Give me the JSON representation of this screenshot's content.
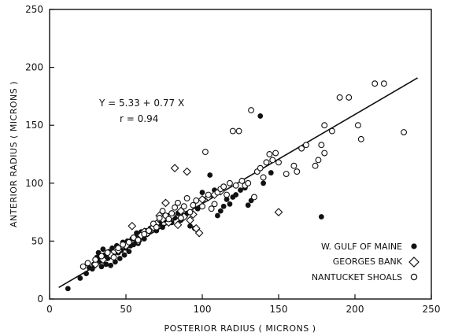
{
  "chart_data": {
    "type": "scatter",
    "title": "",
    "xlabel": "POSTERIOR RADIUS ( MICRONS )",
    "ylabel": "ANTERIOR RADIUS ( MICRONS )",
    "xlim": [
      0,
      250
    ],
    "ylim": [
      0,
      250
    ],
    "xticks": [
      0,
      50,
      100,
      150,
      200,
      250
    ],
    "yticks": [
      0,
      50,
      100,
      150,
      200,
      250
    ],
    "grid": false,
    "legend_position": "bottom-right",
    "annotation": {
      "equation": "Y = 5.33 + 0.77 X",
      "r": "r = 0.94"
    },
    "regression": {
      "intercept": 5.33,
      "slope": 0.77,
      "x_range": [
        6,
        241
      ]
    },
    "series": [
      {
        "name": "W. GULF OF MAINE",
        "marker": "filled-circle",
        "points": [
          [
            12,
            9
          ],
          [
            20,
            18
          ],
          [
            24,
            22
          ],
          [
            26,
            27
          ],
          [
            28,
            26
          ],
          [
            29,
            30
          ],
          [
            31,
            36
          ],
          [
            32,
            40
          ],
          [
            33,
            33
          ],
          [
            34,
            28
          ],
          [
            35,
            43
          ],
          [
            36,
            38
          ],
          [
            37,
            30
          ],
          [
            38,
            35
          ],
          [
            39,
            41
          ],
          [
            40,
            29
          ],
          [
            41,
            44
          ],
          [
            42,
            37
          ],
          [
            43,
            32
          ],
          [
            44,
            46
          ],
          [
            45,
            40
          ],
          [
            46,
            35
          ],
          [
            47,
            42
          ],
          [
            48,
            49
          ],
          [
            49,
            38
          ],
          [
            50,
            44
          ],
          [
            51,
            50
          ],
          [
            52,
            41
          ],
          [
            53,
            46
          ],
          [
            54,
            52
          ],
          [
            55,
            47
          ],
          [
            56,
            53
          ],
          [
            57,
            57
          ],
          [
            58,
            48
          ],
          [
            59,
            55
          ],
          [
            60,
            58
          ],
          [
            62,
            52
          ],
          [
            63,
            59
          ],
          [
            64,
            56
          ],
          [
            66,
            61
          ],
          [
            68,
            63
          ],
          [
            70,
            59
          ],
          [
            72,
            65
          ],
          [
            74,
            62
          ],
          [
            76,
            68
          ],
          [
            78,
            72
          ],
          [
            80,
            66
          ],
          [
            82,
            70
          ],
          [
            84,
            74
          ],
          [
            86,
            68
          ],
          [
            88,
            72
          ],
          [
            90,
            74
          ],
          [
            92,
            63
          ],
          [
            95,
            61
          ],
          [
            97,
            78
          ],
          [
            100,
            92
          ],
          [
            105,
            107
          ],
          [
            108,
            94
          ],
          [
            110,
            72
          ],
          [
            112,
            76
          ],
          [
            114,
            80
          ],
          [
            116,
            86
          ],
          [
            118,
            82
          ],
          [
            120,
            88
          ],
          [
            122,
            90
          ],
          [
            125,
            94
          ],
          [
            128,
            96
          ],
          [
            130,
            81
          ],
          [
            132,
            85
          ],
          [
            138,
            158
          ],
          [
            140,
            100
          ],
          [
            145,
            109
          ],
          [
            178,
            71
          ]
        ]
      },
      {
        "name": "GEORGES BANK",
        "marker": "open-diamond",
        "points": [
          [
            30,
            30
          ],
          [
            35,
            34
          ],
          [
            40,
            38
          ],
          [
            45,
            42
          ],
          [
            50,
            46
          ],
          [
            54,
            63
          ],
          [
            56,
            52
          ],
          [
            58,
            50
          ],
          [
            60,
            55
          ],
          [
            62,
            58
          ],
          [
            64,
            57
          ],
          [
            66,
            60
          ],
          [
            68,
            62
          ],
          [
            70,
            65
          ],
          [
            72,
            72
          ],
          [
            74,
            69
          ],
          [
            76,
            83
          ],
          [
            78,
            66
          ],
          [
            80,
            72
          ],
          [
            82,
            113
          ],
          [
            84,
            64
          ],
          [
            86,
            76
          ],
          [
            88,
            71
          ],
          [
            90,
            110
          ],
          [
            92,
            68
          ],
          [
            94,
            73
          ],
          [
            96,
            61
          ],
          [
            98,
            57
          ],
          [
            100,
            86
          ],
          [
            104,
            88
          ],
          [
            108,
            90
          ],
          [
            112,
            93
          ],
          [
            150,
            75
          ]
        ]
      },
      {
        "name": "NANTUCKET SHOALS",
        "marker": "open-circle",
        "points": [
          [
            22,
            28
          ],
          [
            25,
            31
          ],
          [
            30,
            34
          ],
          [
            34,
            37
          ],
          [
            38,
            40
          ],
          [
            42,
            36
          ],
          [
            45,
            44
          ],
          [
            48,
            47
          ],
          [
            52,
            49
          ],
          [
            55,
            53
          ],
          [
            58,
            51
          ],
          [
            62,
            56
          ],
          [
            65,
            59
          ],
          [
            68,
            65
          ],
          [
            70,
            62
          ],
          [
            72,
            70
          ],
          [
            74,
            76
          ],
          [
            76,
            72
          ],
          [
            78,
            69
          ],
          [
            80,
            74
          ],
          [
            82,
            79
          ],
          [
            84,
            83
          ],
          [
            86,
            70
          ],
          [
            88,
            80
          ],
          [
            90,
            87
          ],
          [
            92,
            75
          ],
          [
            94,
            81
          ],
          [
            96,
            85
          ],
          [
            100,
            80
          ],
          [
            102,
            127
          ],
          [
            104,
            90
          ],
          [
            106,
            78
          ],
          [
            108,
            82
          ],
          [
            110,
            92
          ],
          [
            112,
            95
          ],
          [
            114,
            97
          ],
          [
            116,
            90
          ],
          [
            118,
            100
          ],
          [
            120,
            145
          ],
          [
            122,
            98
          ],
          [
            124,
            145
          ],
          [
            126,
            102
          ],
          [
            128,
            98
          ],
          [
            130,
            100
          ],
          [
            132,
            163
          ],
          [
            134,
            88
          ],
          [
            136,
            110
          ],
          [
            138,
            113
          ],
          [
            140,
            105
          ],
          [
            142,
            118
          ],
          [
            144,
            125
          ],
          [
            146,
            120
          ],
          [
            148,
            126
          ],
          [
            150,
            118
          ],
          [
            155,
            108
          ],
          [
            160,
            115
          ],
          [
            162,
            110
          ],
          [
            165,
            130
          ],
          [
            168,
            133
          ],
          [
            174,
            115
          ],
          [
            176,
            120
          ],
          [
            178,
            133
          ],
          [
            180,
            126
          ],
          [
            180,
            150
          ],
          [
            185,
            145
          ],
          [
            190,
            174
          ],
          [
            196,
            174
          ],
          [
            202,
            150
          ],
          [
            204,
            138
          ],
          [
            213,
            186
          ],
          [
            219,
            186
          ],
          [
            232,
            144
          ]
        ]
      }
    ]
  }
}
